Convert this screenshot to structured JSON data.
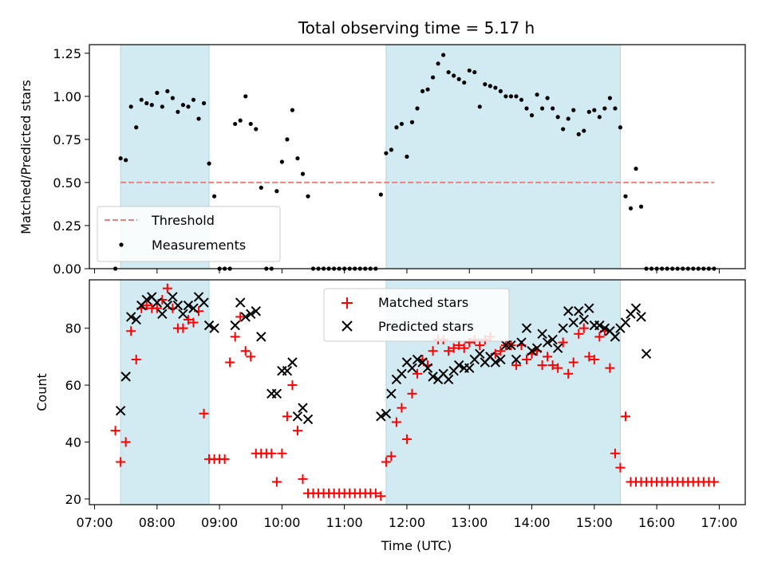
{
  "chart_data": [
    {
      "type": "scatter",
      "title": "Total observing time = 5.17 h",
      "xlabel": "",
      "ylabel": "Matched/Predicted stars",
      "xlim": [
        "06:55",
        "17:25"
      ],
      "ylim": [
        0,
        1.3
      ],
      "ytick_labels": [
        "0.00",
        "0.25",
        "0.50",
        "0.75",
        "1.00",
        "1.25"
      ],
      "ytick_values": [
        0,
        0.25,
        0.5,
        0.75,
        1.0,
        1.25
      ],
      "shaded_intervals": [
        [
          "07:25",
          "08:50"
        ],
        [
          "11:40",
          "15:25"
        ]
      ],
      "shade_color": "#add8e6",
      "legend_position": "lower-left",
      "threshold": {
        "name": "Threshold",
        "value": 0.5,
        "x_start": "07:25",
        "x_end": "16:55",
        "color": "#f08080"
      },
      "series": [
        {
          "name": "Measurements",
          "color": "#000000",
          "x": [
            "07:20",
            "07:25",
            "07:30",
            "07:35",
            "07:40",
            "07:45",
            "07:50",
            "07:55",
            "08:00",
            "08:05",
            "08:10",
            "08:15",
            "08:20",
            "08:25",
            "08:30",
            "08:35",
            "08:40",
            "08:45",
            "08:50",
            "08:55",
            "09:00",
            "09:05",
            "09:10",
            "09:15",
            "09:20",
            "09:25",
            "09:30",
            "09:35",
            "09:40",
            "09:45",
            "09:50",
            "09:55",
            "10:00",
            "10:05",
            "10:10",
            "10:15",
            "10:20",
            "10:25",
            "10:30",
            "10:35",
            "10:40",
            "10:45",
            "10:50",
            "10:55",
            "11:00",
            "11:05",
            "11:10",
            "11:15",
            "11:20",
            "11:25",
            "11:30",
            "11:35",
            "11:40",
            "11:45",
            "11:50",
            "11:55",
            "12:00",
            "12:05",
            "12:10",
            "12:15",
            "12:20",
            "12:25",
            "12:30",
            "12:35",
            "12:40",
            "12:45",
            "12:50",
            "12:55",
            "13:00",
            "13:05",
            "13:10",
            "13:15",
            "13:20",
            "13:25",
            "13:30",
            "13:35",
            "13:40",
            "13:45",
            "13:50",
            "13:55",
            "14:00",
            "14:05",
            "14:10",
            "14:15",
            "14:20",
            "14:25",
            "14:30",
            "14:35",
            "14:40",
            "14:45",
            "14:50",
            "14:55",
            "15:00",
            "15:05",
            "15:10",
            "15:15",
            "15:20",
            "15:25",
            "15:30",
            "15:35",
            "15:40",
            "15:45",
            "15:50",
            "15:55",
            "16:00",
            "16:05",
            "16:10",
            "16:15",
            "16:20",
            "16:25",
            "16:30",
            "16:35",
            "16:40",
            "16:45",
            "16:50",
            "16:55"
          ],
          "y": [
            0.0,
            0.64,
            0.63,
            0.94,
            0.82,
            0.98,
            0.96,
            0.95,
            1.02,
            0.94,
            1.03,
            0.99,
            0.91,
            0.95,
            0.94,
            0.98,
            0.87,
            0.96,
            0.61,
            0.42,
            0.0,
            0.0,
            0.0,
            0.84,
            0.86,
            1.0,
            0.84,
            0.81,
            0.47,
            0.0,
            0.0,
            0.45,
            0.62,
            0.75,
            0.92,
            0.64,
            0.55,
            0.42,
            0.0,
            0.0,
            0.0,
            0.0,
            0.0,
            0.0,
            0.0,
            0.0,
            0.0,
            0.0,
            0.0,
            0.0,
            0.0,
            0.43,
            0.67,
            0.69,
            0.82,
            0.84,
            0.65,
            0.85,
            0.93,
            1.03,
            1.04,
            1.11,
            1.19,
            1.24,
            1.14,
            1.12,
            1.1,
            1.08,
            1.15,
            1.14,
            0.94,
            1.07,
            1.06,
            1.05,
            1.03,
            1.0,
            1.0,
            1.0,
            0.98,
            0.93,
            0.89,
            1.01,
            0.93,
            0.99,
            0.93,
            0.88,
            0.81,
            0.87,
            0.92,
            0.78,
            0.8,
            0.91,
            0.92,
            0.88,
            0.93,
            0.99,
            0.93,
            0.82,
            0.42,
            0.35,
            0.58,
            0.36,
            0.0,
            0.0,
            0.0,
            0.0,
            0.0,
            0.0,
            0.0,
            0.0,
            0.0,
            0.0,
            0.0,
            0.0,
            0.0,
            0.0
          ]
        }
      ]
    },
    {
      "type": "scatter",
      "title": "",
      "xlabel": "Time (UTC)",
      "ylabel": "Count",
      "xlim": [
        "06:55",
        "17:25"
      ],
      "ylim": [
        18,
        97
      ],
      "ytick_labels": [
        "20",
        "40",
        "60",
        "80"
      ],
      "ytick_values": [
        20,
        40,
        60,
        80
      ],
      "xtick_labels": [
        "07:00",
        "08:00",
        "09:00",
        "10:00",
        "11:00",
        "12:00",
        "13:00",
        "14:00",
        "15:00",
        "16:00",
        "17:00"
      ],
      "shaded_intervals": [
        [
          "07:25",
          "08:50"
        ],
        [
          "11:40",
          "15:25"
        ]
      ],
      "shade_color": "#add8e6",
      "legend_position": "top-center",
      "series": [
        {
          "name": "Matched stars",
          "marker": "plus",
          "color": "#ff0000",
          "x": [
            "07:20",
            "07:25",
            "07:30",
            "07:35",
            "07:40",
            "07:45",
            "07:50",
            "07:55",
            "08:00",
            "08:05",
            "08:10",
            "08:15",
            "08:20",
            "08:25",
            "08:30",
            "08:35",
            "08:40",
            "08:45",
            "08:50",
            "08:55",
            "09:00",
            "09:05",
            "09:10",
            "09:15",
            "09:20",
            "09:25",
            "09:30",
            "09:35",
            "09:40",
            "09:45",
            "09:50",
            "09:55",
            "10:00",
            "10:05",
            "10:10",
            "10:15",
            "10:20",
            "10:25",
            "10:30",
            "10:35",
            "10:40",
            "10:45",
            "10:50",
            "10:55",
            "11:00",
            "11:05",
            "11:10",
            "11:15",
            "11:20",
            "11:25",
            "11:30",
            "11:35",
            "11:40",
            "11:45",
            "11:50",
            "11:55",
            "12:00",
            "12:05",
            "12:10",
            "12:15",
            "12:20",
            "12:25",
            "12:30",
            "12:35",
            "12:40",
            "12:45",
            "12:50",
            "12:55",
            "13:00",
            "13:05",
            "13:10",
            "13:15",
            "13:20",
            "13:25",
            "13:30",
            "13:35",
            "13:40",
            "13:45",
            "13:50",
            "13:55",
            "14:00",
            "14:05",
            "14:10",
            "14:15",
            "14:20",
            "14:25",
            "14:30",
            "14:35",
            "14:40",
            "14:45",
            "14:50",
            "14:55",
            "15:00",
            "15:05",
            "15:10",
            "15:15",
            "15:20",
            "15:25",
            "15:30",
            "15:35",
            "15:40",
            "15:45",
            "15:50",
            "15:55",
            "16:00",
            "16:05",
            "16:10",
            "16:15",
            "16:20",
            "16:25",
            "16:30",
            "16:35",
            "16:40",
            "16:45",
            "16:50",
            "16:55"
          ],
          "y": [
            44,
            33,
            40,
            79,
            69,
            87,
            88,
            87,
            87,
            90,
            94,
            87,
            80,
            80,
            83,
            82,
            86,
            50,
            34,
            34,
            34,
            34,
            68,
            77,
            84,
            72,
            70,
            36,
            36,
            36,
            36,
            26,
            36,
            49,
            60,
            44,
            27,
            22,
            22,
            22,
            22,
            22,
            22,
            22,
            22,
            22,
            22,
            22,
            22,
            22,
            22,
            21,
            33,
            35,
            47,
            52,
            41,
            57,
            64,
            69,
            67,
            72,
            76,
            76,
            72,
            73,
            74,
            73,
            75,
            76,
            74,
            76,
            77,
            71,
            72,
            74,
            74,
            67,
            74,
            69,
            71,
            72,
            67,
            70,
            67,
            66,
            75,
            64,
            68,
            78,
            80,
            70,
            69,
            77,
            79,
            66,
            36,
            31,
            49,
            26,
            26,
            26,
            26,
            26,
            26,
            26,
            26,
            26,
            26,
            26,
            26,
            26,
            26,
            26,
            26,
            26
          ]
        },
        {
          "name": "Predicted stars",
          "marker": "x",
          "color": "#000000",
          "x": [
            "07:25",
            "07:30",
            "07:35",
            "07:40",
            "07:45",
            "07:50",
            "07:55",
            "08:00",
            "08:05",
            "08:10",
            "08:15",
            "08:20",
            "08:25",
            "08:30",
            "08:35",
            "08:40",
            "08:45",
            "08:50",
            "08:55",
            "09:15",
            "09:20",
            "09:25",
            "09:30",
            "09:35",
            "09:40",
            "09:50",
            "09:55",
            "10:00",
            "10:05",
            "10:10",
            "10:15",
            "10:20",
            "10:25",
            "11:35",
            "11:40",
            "11:45",
            "11:50",
            "11:55",
            "12:00",
            "12:05",
            "12:10",
            "12:15",
            "12:20",
            "12:25",
            "12:30",
            "12:35",
            "12:40",
            "12:45",
            "12:50",
            "12:55",
            "13:00",
            "13:05",
            "13:10",
            "13:15",
            "13:20",
            "13:25",
            "13:30",
            "13:35",
            "13:40",
            "13:45",
            "13:50",
            "13:55",
            "14:00",
            "14:05",
            "14:10",
            "14:15",
            "14:20",
            "14:25",
            "14:30",
            "14:35",
            "14:40",
            "14:45",
            "14:50",
            "14:55",
            "15:00",
            "15:05",
            "15:10",
            "15:15",
            "15:20",
            "15:25",
            "15:30",
            "15:35",
            "15:40",
            "15:45",
            "15:50"
          ],
          "y": [
            51,
            63,
            84,
            83,
            88,
            90,
            91,
            89,
            85,
            88,
            91,
            88,
            85,
            88,
            87,
            91,
            89,
            81,
            80,
            81,
            89,
            84,
            85,
            86,
            77,
            57,
            57,
            65,
            65,
            68,
            49,
            52,
            48,
            49,
            50,
            57,
            62,
            64,
            68,
            66,
            69,
            68,
            66,
            63,
            62,
            64,
            62,
            65,
            67,
            66,
            66,
            69,
            71,
            68,
            70,
            68,
            69,
            74,
            74,
            69,
            75,
            80,
            72,
            73,
            78,
            75,
            76,
            73,
            80,
            86,
            82,
            86,
            83,
            87,
            81,
            81,
            80,
            79,
            77,
            80,
            82,
            85,
            87,
            84,
            71
          ]
        }
      ]
    }
  ]
}
